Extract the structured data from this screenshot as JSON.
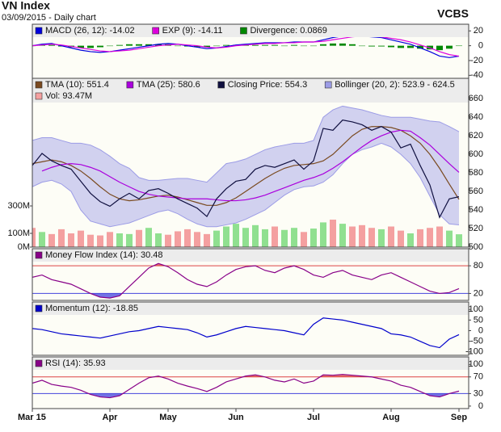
{
  "header": {
    "title": "VN Index",
    "subtitle": "03/09/2015 - Daily chart",
    "source": "VCBS"
  },
  "chart_data": [
    {
      "type": "line",
      "ylim": [
        -44,
        29
      ],
      "yticks": [
        20,
        0,
        -20,
        -40
      ],
      "series": [
        {
          "name": "MACD (26, 12): -14.02",
          "color": "#0000dd",
          "values": [
            0,
            2,
            3,
            0,
            -3,
            -6,
            -8,
            -9,
            -8,
            -6,
            -4,
            -2,
            0,
            2,
            3,
            2,
            0,
            -2,
            -4,
            -3,
            -1,
            1,
            2,
            3,
            4,
            4,
            4,
            5,
            5,
            5,
            8,
            11,
            13,
            14,
            13,
            12,
            11,
            8,
            5,
            2,
            -3,
            -8,
            -14,
            -16,
            -14.02
          ]
        },
        {
          "name": "EXP (9): -14.11",
          "color": "#dd00dd",
          "values": [
            0,
            1,
            2,
            1,
            -1,
            -3,
            -5,
            -7,
            -8,
            -7,
            -6,
            -4,
            -2,
            0,
            1,
            2,
            1,
            0,
            -2,
            -3,
            -2,
            0,
            1,
            2,
            3,
            3,
            4,
            4,
            5,
            5,
            6,
            8,
            10,
            12,
            13,
            13,
            12,
            10,
            8,
            5,
            1,
            -3,
            -8,
            -12,
            -14.11
          ]
        },
        {
          "name": "Divergence: 0.0869",
          "color": "#008800",
          "type": "bar",
          "values": [
            0,
            1,
            1,
            -1,
            -2,
            -3,
            -3,
            -2,
            0,
            1,
            2,
            2,
            2,
            2,
            2,
            0,
            -1,
            -2,
            -2,
            0,
            1,
            1,
            1,
            1,
            1,
            1,
            0,
            1,
            0,
            0,
            2,
            3,
            3,
            2,
            0,
            -1,
            -1,
            -2,
            -3,
            -3,
            -4,
            -5,
            -6,
            -4,
            0.0869
          ]
        }
      ]
    },
    {
      "type": "line",
      "ylim": [
        500,
        682
      ],
      "yticks": [
        500,
        520,
        540,
        560,
        580,
        600,
        620,
        640,
        660
      ],
      "y2lim": [
        0,
        1230000000
      ],
      "y2ticks": [
        {
          "value": 0,
          "label": "0M"
        },
        {
          "value": 100000000,
          "label": "100M"
        },
        {
          "value": 300000000,
          "label": "300M"
        }
      ],
      "series": [
        {
          "name": "TMA (10): 551.4",
          "color": "#7a4a20",
          "values": [
            590,
            592,
            594,
            592,
            588,
            582,
            574,
            565,
            557,
            552,
            550,
            551,
            553,
            555,
            556,
            554,
            551,
            548,
            545,
            545,
            548,
            553,
            560,
            567,
            574,
            580,
            585,
            588,
            589,
            590,
            593,
            600,
            610,
            620,
            627,
            630,
            630,
            629,
            626,
            620,
            612,
            600,
            585,
            568,
            551.4
          ]
        },
        {
          "name": "TMA (25): 580.6",
          "color": "#aa00dd",
          "values": [
            null,
            582,
            586,
            589,
            590,
            589,
            586,
            582,
            576,
            570,
            565,
            560,
            557,
            555,
            554,
            553,
            552,
            552,
            552,
            551,
            550,
            550,
            551,
            553,
            556,
            560,
            564,
            568,
            572,
            575,
            579,
            585,
            592,
            600,
            608,
            615,
            620,
            624,
            626,
            625,
            618,
            610,
            600,
            590,
            580.6
          ]
        },
        {
          "name": "Closing Price: 554.3",
          "color": "#101040",
          "values": [
            588,
            601,
            593,
            588,
            584,
            571,
            558,
            549,
            544,
            552,
            558,
            552,
            561,
            563,
            558,
            552,
            547,
            542,
            533,
            552,
            563,
            571,
            573,
            584,
            588,
            586,
            590,
            594,
            584,
            593,
            628,
            626,
            637,
            635,
            632,
            626,
            630,
            624,
            607,
            611,
            588,
            567,
            532,
            552,
            554.3
          ]
        },
        {
          "name": "Bollinger (20, 2): 523.9 - 624.5",
          "color": "#9c9ce6",
          "type": "band",
          "upper": [
            615,
            618,
            618,
            615,
            612,
            612,
            610,
            605,
            598,
            590,
            585,
            575,
            572,
            572,
            573,
            574,
            574,
            572,
            570,
            580,
            590,
            592,
            595,
            600,
            605,
            608,
            610,
            612,
            612,
            615,
            640,
            648,
            652,
            650,
            648,
            645,
            642,
            640,
            640,
            640,
            638,
            636,
            635,
            630,
            624.5
          ],
          "lower": [
            565,
            570,
            572,
            568,
            560,
            540,
            528,
            525,
            522,
            524,
            526,
            530,
            534,
            538,
            540,
            536,
            530,
            525,
            522,
            522,
            524,
            526,
            530,
            535,
            540,
            548,
            556,
            562,
            565,
            566,
            570,
            578,
            590,
            600,
            605,
            608,
            612,
            608,
            600,
            590,
            575,
            555,
            535,
            525,
            523.9
          ]
        },
        {
          "name": "Vol: 93.47M",
          "color": "#f4a0a0",
          "type": "bar",
          "axis": "y2",
          "values": [
            140000000,
            110000000,
            95000000,
            130000000,
            100000000,
            120000000,
            90000000,
            85000000,
            110000000,
            100000000,
            95000000,
            125000000,
            140000000,
            100000000,
            90000000,
            115000000,
            130000000,
            110000000,
            95000000,
            120000000,
            150000000,
            170000000,
            140000000,
            160000000,
            130000000,
            150000000,
            125000000,
            140000000,
            110000000,
            135000000,
            180000000,
            200000000,
            170000000,
            150000000,
            160000000,
            140000000,
            130000000,
            150000000,
            120000000,
            100000000,
            130000000,
            140000000,
            150000000,
            120000000,
            93470000
          ],
          "colors": [
            "#f4a0a0",
            "#90e090",
            "#f4a0a0",
            "#f4a0a0",
            "#f4a0a0",
            "#f4a0a0",
            "#f4a0a0",
            "#f4a0a0",
            "#f4a0a0",
            "#90e090",
            "#90e090",
            "#f4a0a0",
            "#90e090",
            "#90e090",
            "#f4a0a0",
            "#f4a0a0",
            "#f4a0a0",
            "#f4a0a0",
            "#f4a0a0",
            "#90e090",
            "#90e090",
            "#90e090",
            "#90e090",
            "#90e090",
            "#90e090",
            "#f4a0a0",
            "#90e090",
            "#90e090",
            "#f4a0a0",
            "#90e090",
            "#90e090",
            "#f4a0a0",
            "#90e090",
            "#f4a0a0",
            "#f4a0a0",
            "#f4a0a0",
            "#90e090",
            "#f4a0a0",
            "#f4a0a0",
            "#90e090",
            "#f4a0a0",
            "#f4a0a0",
            "#f4a0a0",
            "#90e090",
            "#90e090"
          ]
        }
      ]
    },
    {
      "type": "line",
      "ylim": [
        5,
        117
      ],
      "yticks": [
        80,
        20
      ],
      "grid_colors": [
        "#dd4444",
        "#4444dd"
      ],
      "series": [
        {
          "name": "Money Flow Index (14): 30.48",
          "color": "#880088",
          "values": [
            55,
            60,
            50,
            45,
            40,
            30,
            20,
            12,
            10,
            15,
            35,
            55,
            75,
            85,
            78,
            65,
            50,
            40,
            35,
            45,
            60,
            72,
            78,
            80,
            70,
            65,
            75,
            80,
            72,
            60,
            55,
            65,
            70,
            60,
            55,
            50,
            60,
            65,
            55,
            45,
            35,
            25,
            20,
            22,
            30.48
          ]
        }
      ]
    },
    {
      "type": "line",
      "ylim": [
        -116,
        135
      ],
      "yticks": [
        100,
        50,
        0,
        -50,
        -100
      ],
      "series": [
        {
          "name": "Momentum (12): -18.85",
          "color": "#0000cc",
          "values": [
            10,
            5,
            -5,
            -15,
            -20,
            -25,
            -30,
            -35,
            -25,
            -15,
            -5,
            0,
            10,
            20,
            15,
            10,
            5,
            -10,
            -30,
            -20,
            -5,
            10,
            20,
            15,
            10,
            5,
            0,
            -10,
            -20,
            30,
            60,
            55,
            50,
            40,
            30,
            20,
            10,
            -15,
            -20,
            -30,
            -50,
            -70,
            -80,
            -40,
            -18.85
          ]
        }
      ]
    },
    {
      "type": "line",
      "ylim": [
        -6,
        118
      ],
      "yticks": [
        100,
        70,
        30,
        0
      ],
      "grid_colors": [
        null,
        "#dd4444",
        "#4444dd",
        null
      ],
      "categories": [
        "Mar 15",
        null,
        null,
        null,
        null,
        null,
        null,
        null,
        "Apr",
        null,
        null,
        null,
        null,
        null,
        "May",
        null,
        null,
        null,
        null,
        null,
        null,
        "Jun",
        null,
        null,
        null,
        null,
        null,
        null,
        null,
        "Jul",
        null,
        null,
        null,
        null,
        null,
        null,
        null,
        "Aug",
        null,
        null,
        null,
        null,
        null,
        null,
        "Sep"
      ],
      "series": [
        {
          "name": "RSI (14): 35.93",
          "color": "#880088",
          "values": [
            55,
            62,
            52,
            48,
            45,
            38,
            28,
            22,
            20,
            25,
            40,
            55,
            68,
            72,
            65,
            55,
            48,
            42,
            35,
            45,
            58,
            65,
            72,
            75,
            70,
            62,
            58,
            65,
            55,
            60,
            75,
            74,
            76,
            74,
            72,
            70,
            65,
            60,
            50,
            45,
            35,
            25,
            22,
            30,
            35.93
          ]
        }
      ]
    }
  ]
}
